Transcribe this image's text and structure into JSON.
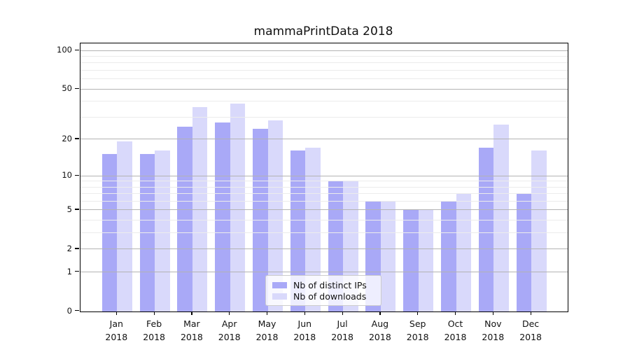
{
  "title": "mammaPrintData 2018",
  "chart_data": {
    "type": "bar",
    "title": "mammaPrintData 2018",
    "categories": [
      "Jan",
      "Feb",
      "Mar",
      "Apr",
      "May",
      "Jun",
      "Jul",
      "Aug",
      "Sep",
      "Oct",
      "Nov",
      "Dec"
    ],
    "category_year": "2018",
    "series": [
      {
        "name": "Nb of distinct IPs",
        "color": "#a9a9f7",
        "values": [
          15,
          15,
          25,
          27,
          24,
          16,
          9,
          6,
          5,
          6,
          17,
          7
        ]
      },
      {
        "name": "Nb of downloads",
        "color": "#d9d9fb",
        "values": [
          19,
          16,
          36,
          38,
          28,
          17,
          9,
          6,
          5,
          7,
          26,
          16
        ]
      }
    ],
    "xlabel": "",
    "ylabel": "",
    "yscale": "log1p",
    "ylim": [
      0,
      115
    ],
    "y_major_ticks": [
      0,
      1,
      2,
      5,
      10,
      20,
      50,
      100
    ],
    "y_minor_gridlines": [
      3,
      4,
      6,
      7,
      8,
      9,
      30,
      40,
      60,
      70,
      80,
      90
    ],
    "grid": "major and minor horizontal gridlines drawn above bars",
    "legend_position": "lower center inside plot"
  },
  "colors": {
    "background": "#ffffff",
    "axis": "#000000",
    "major_grid": "#b3b3b3",
    "minor_grid": "#ececec",
    "text": "#111111"
  }
}
